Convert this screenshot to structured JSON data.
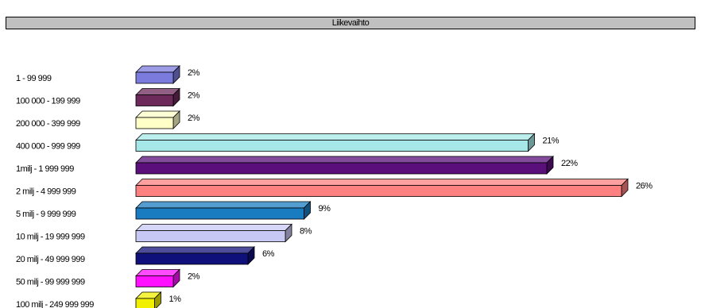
{
  "chart_data": {
    "type": "bar",
    "orientation": "horizontal",
    "three_d": true,
    "title": "Liikevaihto",
    "categories": [
      "1 - 99 999",
      "100 000 - 199 999",
      "200 000 - 399 999",
      "400 000 - 999 999",
      "1milj - 1 999 999",
      "2 milj - 4 999 999",
      "5 milj - 9 999 999",
      "10 milj - 19 999 999",
      "20 milj - 49 999 999",
      "50 milj - 99 999 999",
      "100 milj - 249 999 999"
    ],
    "values": [
      2,
      2,
      2,
      21,
      22,
      26,
      9,
      8,
      6,
      2,
      1
    ],
    "value_labels": [
      "2%",
      "2%",
      "2%",
      "21%",
      "22%",
      "26%",
      "9%",
      "8%",
      "6%",
      "2%",
      "1%"
    ],
    "unit": "%",
    "colors": [
      "#7b7bde",
      "#6b2a5a",
      "#ffffc8",
      "#a6e8e8",
      "#5a0f7a",
      "#ff8080",
      "#1a7cc0",
      "#c8c8f5",
      "#10107a",
      "#ff10ff",
      "#f0f000"
    ],
    "xlim": [
      0,
      26
    ],
    "grid": false,
    "legend": "none"
  }
}
